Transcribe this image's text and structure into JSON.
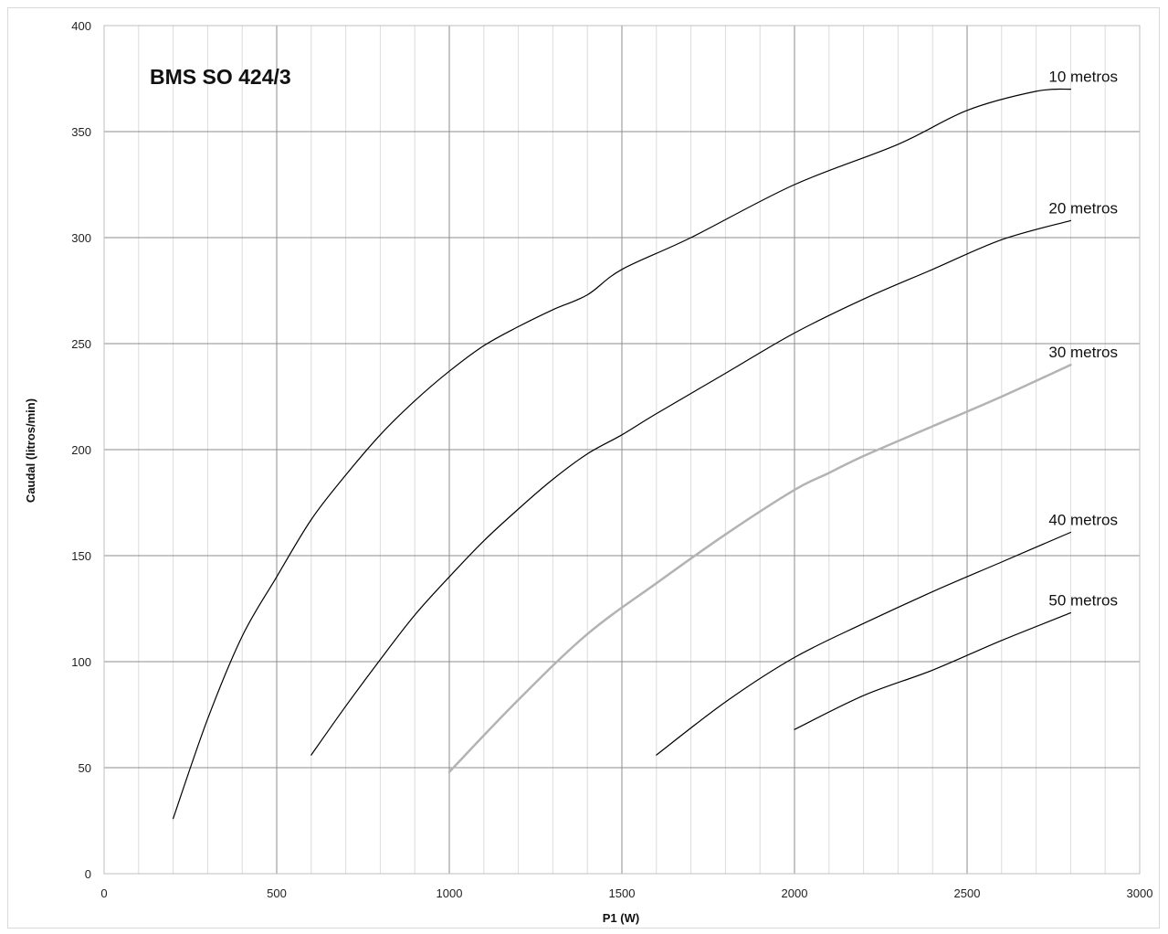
{
  "chart_data": {
    "type": "line",
    "title": "BMS SO 424/3",
    "xlabel": "P1  (W)",
    "ylabel": "Caudal (litros/min)",
    "xlim": [
      0,
      3000
    ],
    "ylim": [
      0,
      400
    ],
    "x_ticks": [
      "0",
      "500",
      "1000",
      "1500",
      "2000",
      "2500",
      "3000"
    ],
    "y_ticks": [
      "0",
      "50",
      "100",
      "150",
      "200",
      "250",
      "300",
      "350",
      "400"
    ],
    "grid": true,
    "series": [
      {
        "name": "10 metros",
        "color": "#000000",
        "points": [
          [
            200,
            26
          ],
          [
            300,
            73
          ],
          [
            400,
            112
          ],
          [
            500,
            140
          ],
          [
            600,
            167
          ],
          [
            700,
            188
          ],
          [
            800,
            207
          ],
          [
            900,
            223
          ],
          [
            1000,
            237
          ],
          [
            1100,
            249
          ],
          [
            1200,
            258
          ],
          [
            1300,
            266
          ],
          [
            1400,
            273
          ],
          [
            1500,
            285
          ],
          [
            1700,
            300
          ],
          [
            2000,
            325
          ],
          [
            2300,
            344
          ],
          [
            2500,
            360
          ],
          [
            2700,
            369
          ],
          [
            2800,
            370
          ]
        ]
      },
      {
        "name": "20 metros",
        "color": "#000000",
        "points": [
          [
            600,
            56
          ],
          [
            700,
            79
          ],
          [
            800,
            101
          ],
          [
            900,
            122
          ],
          [
            1000,
            140
          ],
          [
            1100,
            157
          ],
          [
            1200,
            172
          ],
          [
            1300,
            186
          ],
          [
            1400,
            198
          ],
          [
            1500,
            207
          ],
          [
            1600,
            217
          ],
          [
            1800,
            236
          ],
          [
            2000,
            255
          ],
          [
            2200,
            271
          ],
          [
            2400,
            285
          ],
          [
            2600,
            299
          ],
          [
            2800,
            308
          ]
        ]
      },
      {
        "name": "30 metros",
        "color": "#b3b3b3",
        "points": [
          [
            1000,
            48
          ],
          [
            1200,
            82
          ],
          [
            1400,
            113
          ],
          [
            1600,
            137
          ],
          [
            1800,
            160
          ],
          [
            2000,
            181
          ],
          [
            2100,
            189
          ],
          [
            2200,
            197
          ],
          [
            2400,
            211
          ],
          [
            2600,
            225
          ],
          [
            2800,
            240
          ]
        ]
      },
      {
        "name": "40 metros",
        "color": "#000000",
        "points": [
          [
            1600,
            56
          ],
          [
            1800,
            81
          ],
          [
            2000,
            102
          ],
          [
            2200,
            118
          ],
          [
            2400,
            133
          ],
          [
            2600,
            147
          ],
          [
            2800,
            161
          ]
        ]
      },
      {
        "name": "50 metros",
        "color": "#000000",
        "points": [
          [
            2000,
            68
          ],
          [
            2200,
            84
          ],
          [
            2400,
            96
          ],
          [
            2600,
            110
          ],
          [
            2800,
            123
          ]
        ]
      }
    ]
  }
}
